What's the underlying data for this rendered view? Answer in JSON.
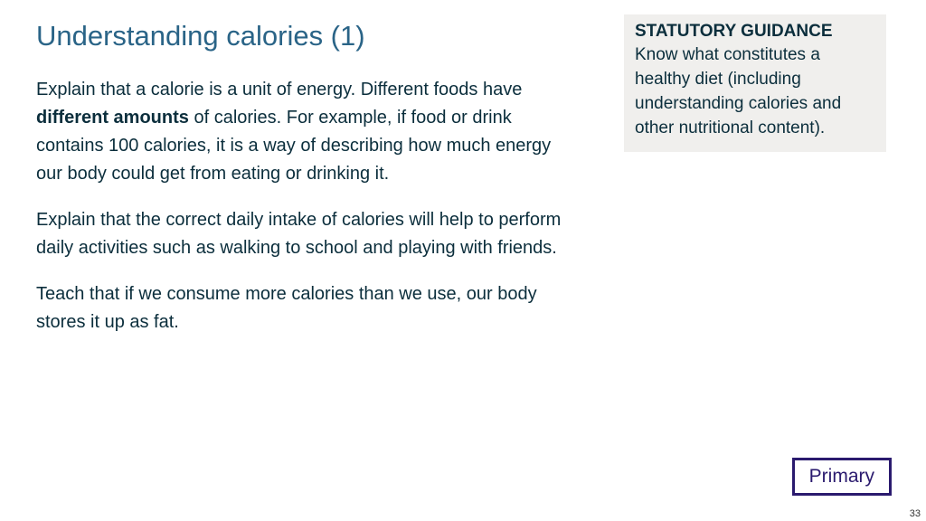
{
  "colors": {
    "title": "#2a6487",
    "body_text": "#0b2e3c",
    "sidebar_bg": "#f0efed",
    "sidebar_text": "#0b2e3c",
    "badge_border": "#2a1a6e",
    "badge_text": "#2a1a6e",
    "pagenum": "#333333",
    "background": "#ffffff"
  },
  "title": "Understanding calories (1)",
  "paragraphs": {
    "p1_pre": "Explain that a calorie is a unit of energy. Different foods have ",
    "p1_bold": "different amounts",
    "p1_post": " of calories. For example, if food or drink contains 100 calories, it is a way of describing how much energy our body could get from eating or drinking it.",
    "p2": "Explain that the correct daily intake of calories will help to perform daily activities such as walking to school and playing with friends.",
    "p3": "Teach that if we consume more calories than we use, our body stores it up as fat."
  },
  "sidebar": {
    "heading": "STATUTORY GUIDANCE",
    "body": "Know what constitutes a healthy diet (including understanding calories and other nutritional content)."
  },
  "badge": "Primary",
  "page_number": "33"
}
